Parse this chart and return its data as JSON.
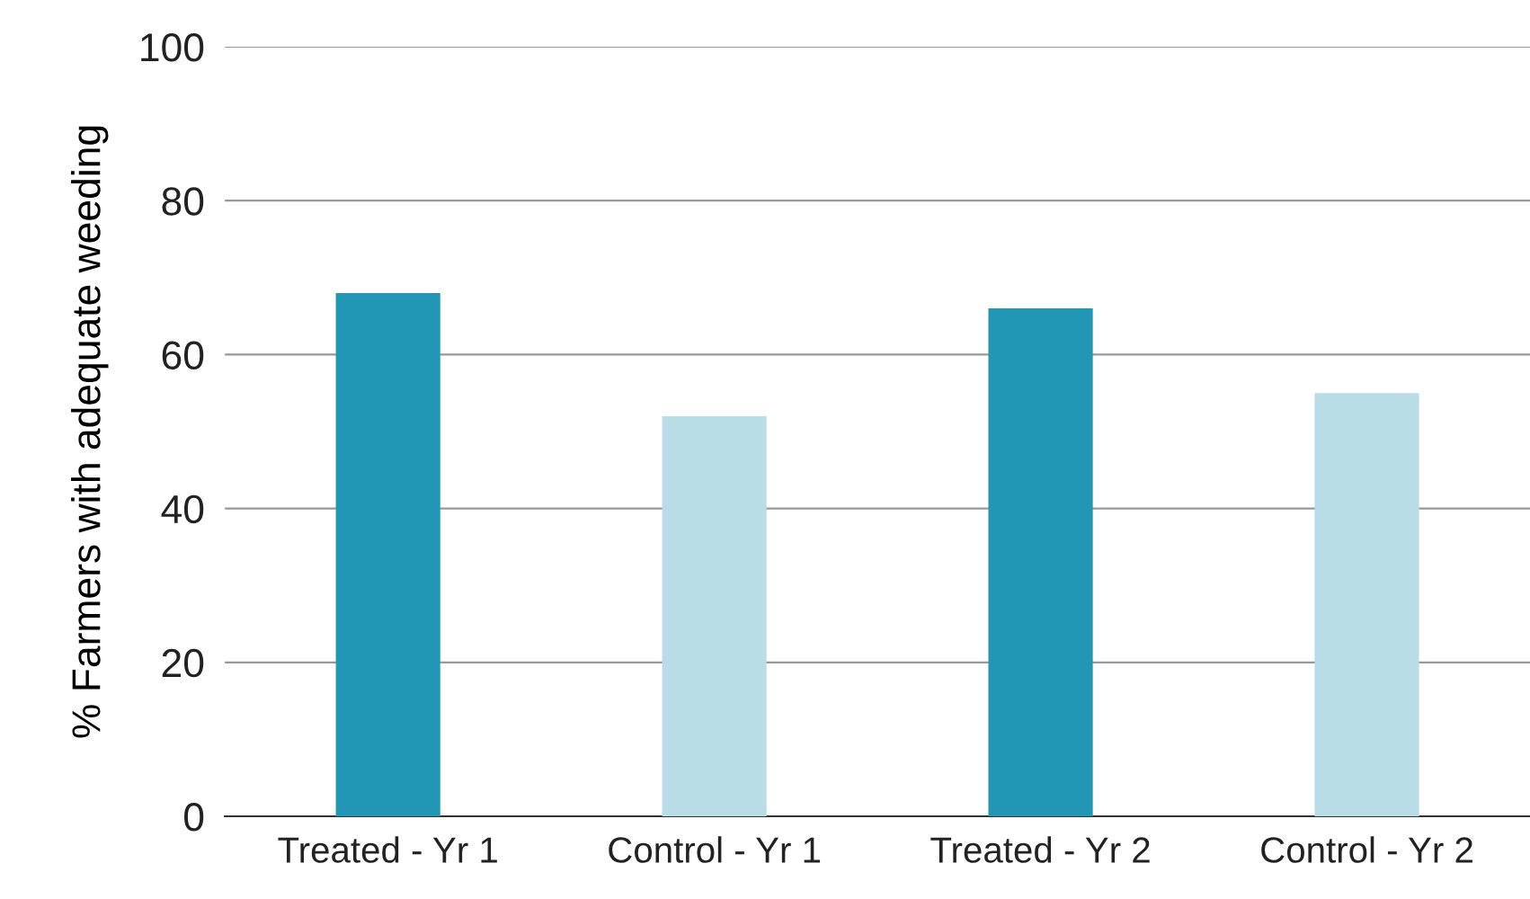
{
  "chart_data": {
    "type": "bar",
    "ylabel": "% Farmers with adequate weeding",
    "categories": [
      "Treated - Yr 1",
      "Control - Yr 1",
      "Treated - Yr 2",
      "Control - Yr 2"
    ],
    "values": [
      68,
      52,
      66,
      55
    ],
    "colors": [
      "#2196b5",
      "#b8dde6",
      "#2196b5",
      "#b8dde6"
    ],
    "ylim": [
      0,
      100
    ],
    "yticks": [
      0,
      20,
      40,
      60,
      80,
      100
    ],
    "grid": "y",
    "legend": false
  }
}
